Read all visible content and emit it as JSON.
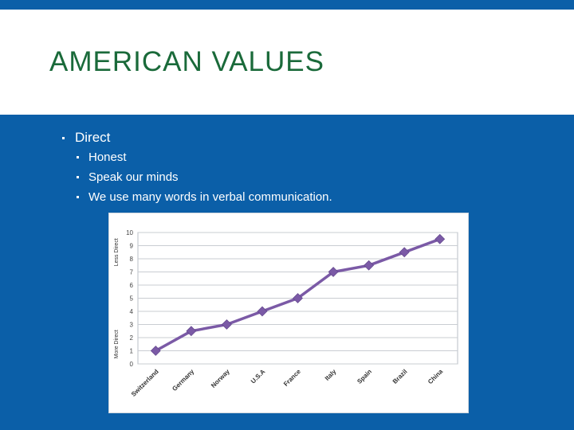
{
  "slide": {
    "title": "AMERICAN VALUES",
    "bullets": {
      "main": "Direct",
      "sub": [
        "Honest",
        "Speak our minds",
        "We use many words in verbal communication."
      ]
    }
  },
  "colors": {
    "background": "#0b5fa8",
    "title": "#1a6a3a",
    "series": "#7b5aa6"
  },
  "chart_data": {
    "type": "line",
    "categories": [
      "Switzerland",
      "Germany",
      "Norway",
      "U.S.A",
      "France",
      "Italy",
      "Spain",
      "Brazil",
      "China"
    ],
    "series": [
      {
        "values": [
          1,
          2.5,
          3,
          4,
          5,
          7,
          7.5,
          8.5,
          9.5
        ]
      }
    ],
    "ylim": [
      0,
      10
    ],
    "yticks": [
      0,
      1,
      2,
      3,
      4,
      5,
      6,
      7,
      8,
      9,
      10
    ],
    "ylabel_top": "Less Direct",
    "ylabel_bottom": "More Direct",
    "grid": true
  }
}
